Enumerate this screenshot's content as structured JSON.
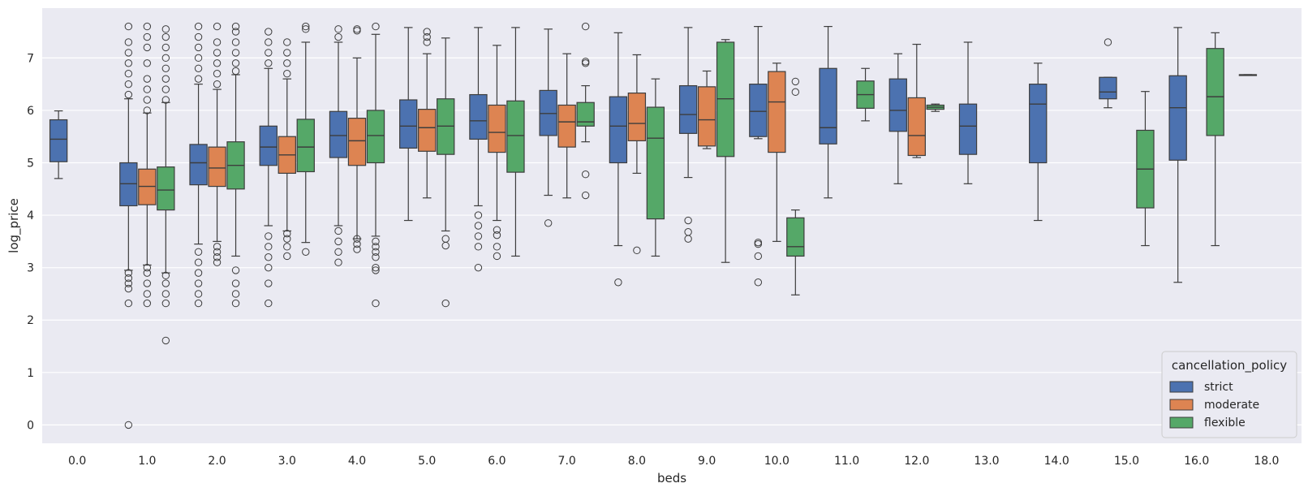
{
  "chart_data": {
    "type": "box",
    "xlabel": "beds",
    "ylabel": "log_price",
    "ylim": [
      -0.35,
      7.95
    ],
    "yticks": [
      0,
      1,
      2,
      3,
      4,
      5,
      6,
      7
    ],
    "categories": [
      "0.0",
      "1.0",
      "2.0",
      "3.0",
      "4.0",
      "5.0",
      "6.0",
      "7.0",
      "8.0",
      "9.0",
      "10.0",
      "11.0",
      "12.0",
      "13.0",
      "14.0",
      "15.0",
      "16.0",
      "18.0"
    ],
    "grid": "horizontal",
    "legend": {
      "title": "cancellation_policy",
      "position": "bottom-right",
      "entries": [
        {
          "name": "strict",
          "color": "#4c72b0"
        },
        {
          "name": "moderate",
          "color": "#dd8452"
        },
        {
          "name": "flexible",
          "color": "#55a868"
        }
      ]
    },
    "series": [
      {
        "name": "strict",
        "color": "#4c72b0",
        "boxes": [
          {
            "cat": "0.0",
            "wl": 4.7,
            "q1": 5.02,
            "med": 5.45,
            "q3": 5.82,
            "wh": 5.99,
            "out": []
          },
          {
            "cat": "1.0",
            "wl": 2.95,
            "q1": 4.18,
            "med": 4.6,
            "q3": 5.0,
            "wh": 6.22,
            "out": [
              0.0,
              2.32,
              2.6,
              2.7,
              2.8,
              2.9,
              6.3,
              6.5,
              6.7,
              6.9,
              7.1,
              7.3,
              7.6
            ]
          },
          {
            "cat": "2.0",
            "wl": 3.45,
            "q1": 4.58,
            "med": 5.0,
            "q3": 5.35,
            "wh": 6.5,
            "out": [
              2.32,
              2.5,
              2.7,
              2.9,
              3.1,
              3.3,
              6.6,
              6.8,
              7.0,
              7.2,
              7.4,
              7.6
            ]
          },
          {
            "cat": "3.0",
            "wl": 3.8,
            "q1": 4.95,
            "med": 5.3,
            "q3": 5.7,
            "wh": 6.8,
            "out": [
              2.32,
              2.7,
              3.0,
              3.2,
              3.4,
              3.6,
              6.9,
              7.1,
              7.3,
              7.5
            ]
          },
          {
            "cat": "4.0",
            "wl": 3.8,
            "q1": 5.1,
            "med": 5.52,
            "q3": 5.98,
            "wh": 7.3,
            "out": [
              3.1,
              3.3,
              3.5,
              3.7,
              7.4,
              7.55
            ]
          },
          {
            "cat": "5.0",
            "wl": 3.9,
            "q1": 5.28,
            "med": 5.7,
            "q3": 6.2,
            "wh": 7.58,
            "out": []
          },
          {
            "cat": "6.0",
            "wl": 4.18,
            "q1": 5.45,
            "med": 5.8,
            "q3": 6.3,
            "wh": 7.58,
            "out": [
              3.0,
              3.4,
              3.6,
              3.8,
              4.0
            ]
          },
          {
            "cat": "7.0",
            "wl": 4.38,
            "q1": 5.52,
            "med": 5.94,
            "q3": 6.38,
            "wh": 7.55,
            "out": [
              3.85
            ]
          },
          {
            "cat": "8.0",
            "wl": 3.42,
            "q1": 5.0,
            "med": 5.7,
            "q3": 6.26,
            "wh": 7.48,
            "out": [
              2.72
            ]
          },
          {
            "cat": "9.0",
            "wl": 4.72,
            "q1": 5.56,
            "med": 5.92,
            "q3": 6.47,
            "wh": 7.58,
            "out": [
              3.55,
              3.68,
              3.9
            ]
          },
          {
            "cat": "10.0",
            "wl": 5.46,
            "q1": 5.5,
            "med": 5.98,
            "q3": 6.5,
            "wh": 7.6,
            "out": [
              2.72,
              3.22,
              3.45,
              3.48
            ]
          },
          {
            "cat": "11.0",
            "wl": 4.33,
            "q1": 5.36,
            "med": 5.67,
            "q3": 6.8,
            "wh": 7.6,
            "out": []
          },
          {
            "cat": "12.0",
            "wl": 4.6,
            "q1": 5.6,
            "med": 6.0,
            "q3": 6.6,
            "wh": 7.08,
            "out": []
          },
          {
            "cat": "13.0",
            "wl": 4.6,
            "q1": 5.16,
            "med": 5.7,
            "q3": 6.12,
            "wh": 7.3,
            "out": []
          },
          {
            "cat": "14.0",
            "wl": 3.9,
            "q1": 5.0,
            "med": 6.12,
            "q3": 6.5,
            "wh": 6.9,
            "out": []
          },
          {
            "cat": "15.0",
            "wl": 6.05,
            "q1": 6.22,
            "med": 6.35,
            "q3": 6.63,
            "wh": 6.63,
            "out": [
              7.3
            ]
          },
          {
            "cat": "16.0",
            "wl": 2.72,
            "q1": 5.05,
            "med": 6.05,
            "q3": 6.66,
            "wh": 7.58,
            "out": []
          },
          {
            "cat": "18.0",
            "wl": 6.68,
            "q1": 6.68,
            "med": 6.68,
            "q3": 6.68,
            "wh": 6.68,
            "out": []
          }
        ]
      },
      {
        "name": "moderate",
        "color": "#dd8452",
        "boxes": [
          {
            "cat": "1.0",
            "wl": 3.05,
            "q1": 4.2,
            "med": 4.55,
            "q3": 4.88,
            "wh": 5.95,
            "out": [
              2.32,
              2.5,
              2.7,
              2.9,
              3.0,
              6.0,
              6.2,
              6.4,
              6.6,
              6.9,
              7.2,
              7.4,
              7.6
            ]
          },
          {
            "cat": "2.0",
            "wl": 3.5,
            "q1": 4.55,
            "med": 4.9,
            "q3": 5.3,
            "wh": 6.4,
            "out": [
              3.1,
              3.2,
              3.3,
              3.4,
              6.5,
              6.7,
              6.9,
              7.1,
              7.3,
              7.6
            ]
          },
          {
            "cat": "3.0",
            "wl": 3.7,
            "q1": 4.8,
            "med": 5.15,
            "q3": 5.5,
            "wh": 6.6,
            "out": [
              3.22,
              3.4,
              3.55,
              3.65,
              6.7,
              6.9,
              7.1,
              7.3
            ]
          },
          {
            "cat": "4.0",
            "wl": 3.55,
            "q1": 4.95,
            "med": 5.42,
            "q3": 5.85,
            "wh": 7.0,
            "out": [
              3.35,
              3.45,
              3.55,
              7.52,
              7.55
            ]
          },
          {
            "cat": "5.0",
            "wl": 4.33,
            "q1": 5.22,
            "med": 5.67,
            "q3": 6.02,
            "wh": 7.08,
            "out": [
              7.3,
              7.4,
              7.5
            ]
          },
          {
            "cat": "6.0",
            "wl": 3.9,
            "q1": 5.2,
            "med": 5.58,
            "q3": 6.1,
            "wh": 7.24,
            "out": [
              3.22,
              3.4,
              3.62,
              3.72
            ]
          },
          {
            "cat": "7.0",
            "wl": 4.33,
            "q1": 5.3,
            "med": 5.78,
            "q3": 6.1,
            "wh": 7.08,
            "out": []
          },
          {
            "cat": "8.0",
            "wl": 4.8,
            "q1": 5.42,
            "med": 5.75,
            "q3": 6.33,
            "wh": 7.06,
            "out": [
              3.33
            ]
          },
          {
            "cat": "9.0",
            "wl": 5.27,
            "q1": 5.32,
            "med": 5.82,
            "q3": 6.45,
            "wh": 6.75,
            "out": []
          },
          {
            "cat": "10.0",
            "wl": 3.5,
            "q1": 5.2,
            "med": 6.16,
            "q3": 6.74,
            "wh": 6.9,
            "out": []
          },
          {
            "cat": "12.0",
            "wl": 5.1,
            "q1": 5.14,
            "med": 5.52,
            "q3": 6.24,
            "wh": 7.26,
            "out": []
          }
        ]
      },
      {
        "name": "flexible",
        "color": "#55a868",
        "boxes": [
          {
            "cat": "1.0",
            "wl": 2.9,
            "q1": 4.1,
            "med": 4.48,
            "q3": 4.92,
            "wh": 6.15,
            "out": [
              1.61,
              2.32,
              2.5,
              2.7,
              2.85,
              6.2,
              6.4,
              6.6,
              6.8,
              7.0,
              7.2,
              7.4,
              7.55
            ]
          },
          {
            "cat": "2.0",
            "wl": 3.22,
            "q1": 4.5,
            "med": 4.95,
            "q3": 5.4,
            "wh": 6.68,
            "out": [
              2.32,
              2.5,
              2.7,
              2.95,
              6.75,
              6.9,
              7.1,
              7.3,
              7.5,
              7.6
            ]
          },
          {
            "cat": "3.0",
            "wl": 3.48,
            "q1": 4.83,
            "med": 5.3,
            "q3": 5.83,
            "wh": 7.3,
            "out": [
              3.3,
              7.55,
              7.6
            ]
          },
          {
            "cat": "4.0",
            "wl": 3.6,
            "q1": 5.0,
            "med": 5.52,
            "q3": 6.0,
            "wh": 7.45,
            "out": [
              2.32,
              2.95,
              3.0,
              3.2,
              3.3,
              3.4,
              3.5,
              7.6
            ]
          },
          {
            "cat": "5.0",
            "wl": 3.7,
            "q1": 5.16,
            "med": 5.7,
            "q3": 6.22,
            "wh": 7.38,
            "out": [
              2.32,
              3.42,
              3.55
            ]
          },
          {
            "cat": "6.0",
            "wl": 3.22,
            "q1": 4.82,
            "med": 5.52,
            "q3": 6.18,
            "wh": 7.58,
            "out": []
          },
          {
            "cat": "7.0",
            "wl": 5.4,
            "q1": 5.7,
            "med": 5.78,
            "q3": 6.15,
            "wh": 6.47,
            "out": [
              4.38,
              4.78,
              6.9,
              6.93,
              7.6
            ]
          },
          {
            "cat": "8.0",
            "wl": 3.22,
            "q1": 3.93,
            "med": 5.47,
            "q3": 6.06,
            "wh": 6.6,
            "out": []
          },
          {
            "cat": "9.0",
            "wl": 3.1,
            "q1": 5.12,
            "med": 6.22,
            "q3": 7.3,
            "wh": 7.35,
            "out": []
          },
          {
            "cat": "10.0",
            "wl": 2.48,
            "q1": 3.22,
            "med": 3.4,
            "q3": 3.95,
            "wh": 4.1,
            "out": [
              6.35,
              6.55
            ]
          },
          {
            "cat": "11.0",
            "wl": 5.8,
            "q1": 6.04,
            "med": 6.3,
            "q3": 6.56,
            "wh": 6.8,
            "out": []
          },
          {
            "cat": "12.0",
            "wl": 5.98,
            "q1": 6.02,
            "med": 6.06,
            "q3": 6.1,
            "wh": 6.12,
            "out": []
          },
          {
            "cat": "15.0",
            "wl": 3.42,
            "q1": 4.14,
            "med": 4.88,
            "q3": 5.62,
            "wh": 6.36,
            "out": []
          },
          {
            "cat": "16.0",
            "wl": 3.42,
            "q1": 5.52,
            "med": 6.26,
            "q3": 7.18,
            "wh": 7.48,
            "out": []
          }
        ]
      }
    ]
  }
}
